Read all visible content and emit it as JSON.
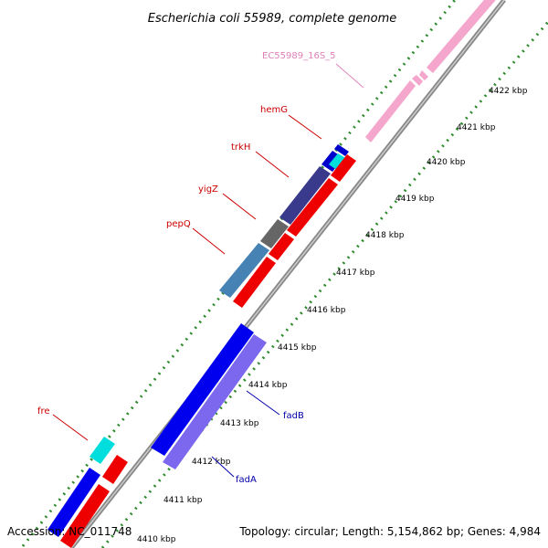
{
  "title": "Escherichia coli 55989, complete genome",
  "footer": {
    "accession": "Accession: NC_011748",
    "summary": "Topology: circular; Length: 5,154,862 bp; Genes: 4,984"
  },
  "colors": {
    "backbone": "#888888",
    "dots": "#2e8b2e",
    "rrna": "#f4a6cc",
    "gene_label_red": "#cc0000",
    "gene_label_blue": "#0000aa",
    "gene_label_pink": "#e080b8"
  },
  "scale": {
    "ticks": [
      {
        "label": "4410 kbp"
      },
      {
        "label": "4411 kbp"
      },
      {
        "label": "4412 kbp"
      },
      {
        "label": "4413 kbp"
      },
      {
        "label": "4414 kbp"
      },
      {
        "label": "4415 kbp"
      },
      {
        "label": "4416 kbp"
      },
      {
        "label": "4417 kbp"
      },
      {
        "label": "4418 kbp"
      },
      {
        "label": "4419 kbp"
      },
      {
        "label": "4420 kbp"
      },
      {
        "label": "4421 kbp"
      },
      {
        "label": "4422 kbp"
      }
    ]
  },
  "gene_labels": [
    {
      "name": "EC55989_16S_5",
      "color_key": "gene_label_pink"
    },
    {
      "name": "hemG",
      "color_key": "gene_label_red"
    },
    {
      "name": "trkH",
      "color_key": "gene_label_red"
    },
    {
      "name": "yigZ",
      "color_key": "gene_label_red"
    },
    {
      "name": "pepQ",
      "color_key": "gene_label_red"
    },
    {
      "name": "fre",
      "color_key": "gene_label_red"
    },
    {
      "name": "fadB",
      "color_key": "gene_label_blue"
    },
    {
      "name": "fadA",
      "color_key": "gene_label_blue"
    }
  ]
}
